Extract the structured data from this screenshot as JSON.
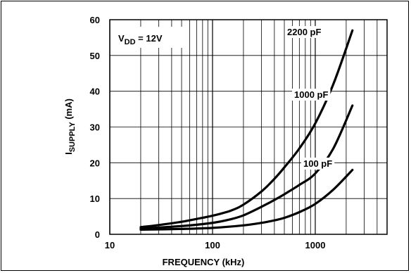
{
  "chart_data": {
    "type": "line",
    "title": "",
    "xlabel": "FREQUENCY (kHz)",
    "ylabel_main": "I",
    "ylabel_sub": "SUPPLY",
    "ylabel_unit": " (mA)",
    "xscale": "log",
    "xlim": [
      10,
      5000
    ],
    "ylim": [
      0,
      60
    ],
    "x_ticks": [
      {
        "value": 10,
        "label": "10"
      },
      {
        "value": 100,
        "label": "100"
      },
      {
        "value": 1000,
        "label": "1000"
      }
    ],
    "y_ticks": [
      {
        "value": 0,
        "label": "0"
      },
      {
        "value": 10,
        "label": "10"
      },
      {
        "value": 20,
        "label": "20"
      },
      {
        "value": 30,
        "label": "30"
      },
      {
        "value": 40,
        "label": "40"
      },
      {
        "value": 50,
        "label": "50"
      },
      {
        "value": 60,
        "label": "60"
      }
    ],
    "grid": true,
    "annotation": {
      "main": "V",
      "sub": "DD",
      "rest": " = 12V"
    },
    "series": [
      {
        "name": "2200 pF",
        "x": [
          20,
          30,
          50,
          70,
          100,
          150,
          200,
          300,
          400,
          500,
          700,
          1000,
          1500,
          2300
        ],
        "y": [
          2,
          2.6,
          3.5,
          4.3,
          5.2,
          6.6,
          8.3,
          12,
          15.5,
          18.7,
          24,
          31,
          42,
          57
        ]
      },
      {
        "name": "1000 pF",
        "x": [
          20,
          50,
          100,
          150,
          200,
          300,
          400,
          500,
          700,
          1000,
          1500,
          2300
        ],
        "y": [
          1.6,
          2.3,
          3.2,
          4.2,
          5.3,
          7.7,
          9.6,
          11.2,
          13.8,
          17,
          24,
          36
        ]
      },
      {
        "name": "100 pF",
        "x": [
          20,
          50,
          100,
          200,
          300,
          400,
          500,
          700,
          1000,
          1500,
          2300
        ],
        "y": [
          1.3,
          1.5,
          1.8,
          2.5,
          3.2,
          3.9,
          4.6,
          6.2,
          8.5,
          12.5,
          18
        ]
      }
    ]
  }
}
